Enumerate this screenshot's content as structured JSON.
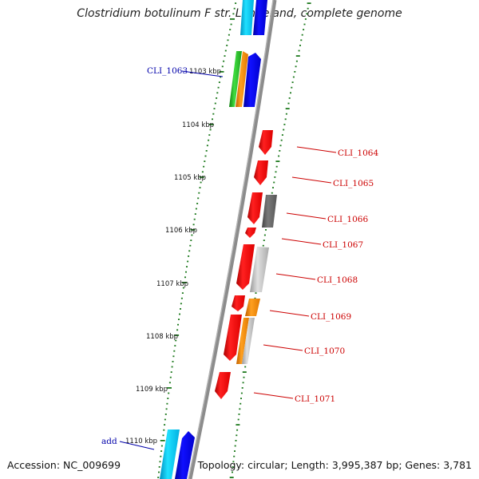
{
  "title": "Clostridium botulinum F str. Langeland, complete genome",
  "footer": {
    "accession": "Accession: NC_009699",
    "topology": "Topology: circular; Length: 3,995,387 bp; Genes: 3,781"
  },
  "kbp_ticks": [
    "1103 kbp",
    "1104 kbp",
    "1105 kbp",
    "1106 kbp",
    "1107 kbp",
    "1108 kbp",
    "1109 kbp",
    "1110 kbp"
  ],
  "gene_labels": {
    "left": [
      "CLI_1063",
      "add"
    ],
    "right": [
      "CLI_1064",
      "CLI_1065",
      "CLI_1066",
      "CLI_1067",
      "CLI_1068",
      "CLI_1069",
      "CLI_1070",
      "CLI_1071"
    ]
  },
  "colors": {
    "backbone": "#8c8c8c",
    "ticks": "#1e7a1e",
    "red_gene": "#ff0000",
    "blue_gene": "#0000ff",
    "cyan_gene": "#00d4ff",
    "green_gene": "#22bb22",
    "orange_gene": "#ff8c00",
    "gray_gene": "#666666",
    "lightgray_gene": "#c0c0c0",
    "left_label": "#0000aa",
    "right_label": "#cc0000"
  }
}
